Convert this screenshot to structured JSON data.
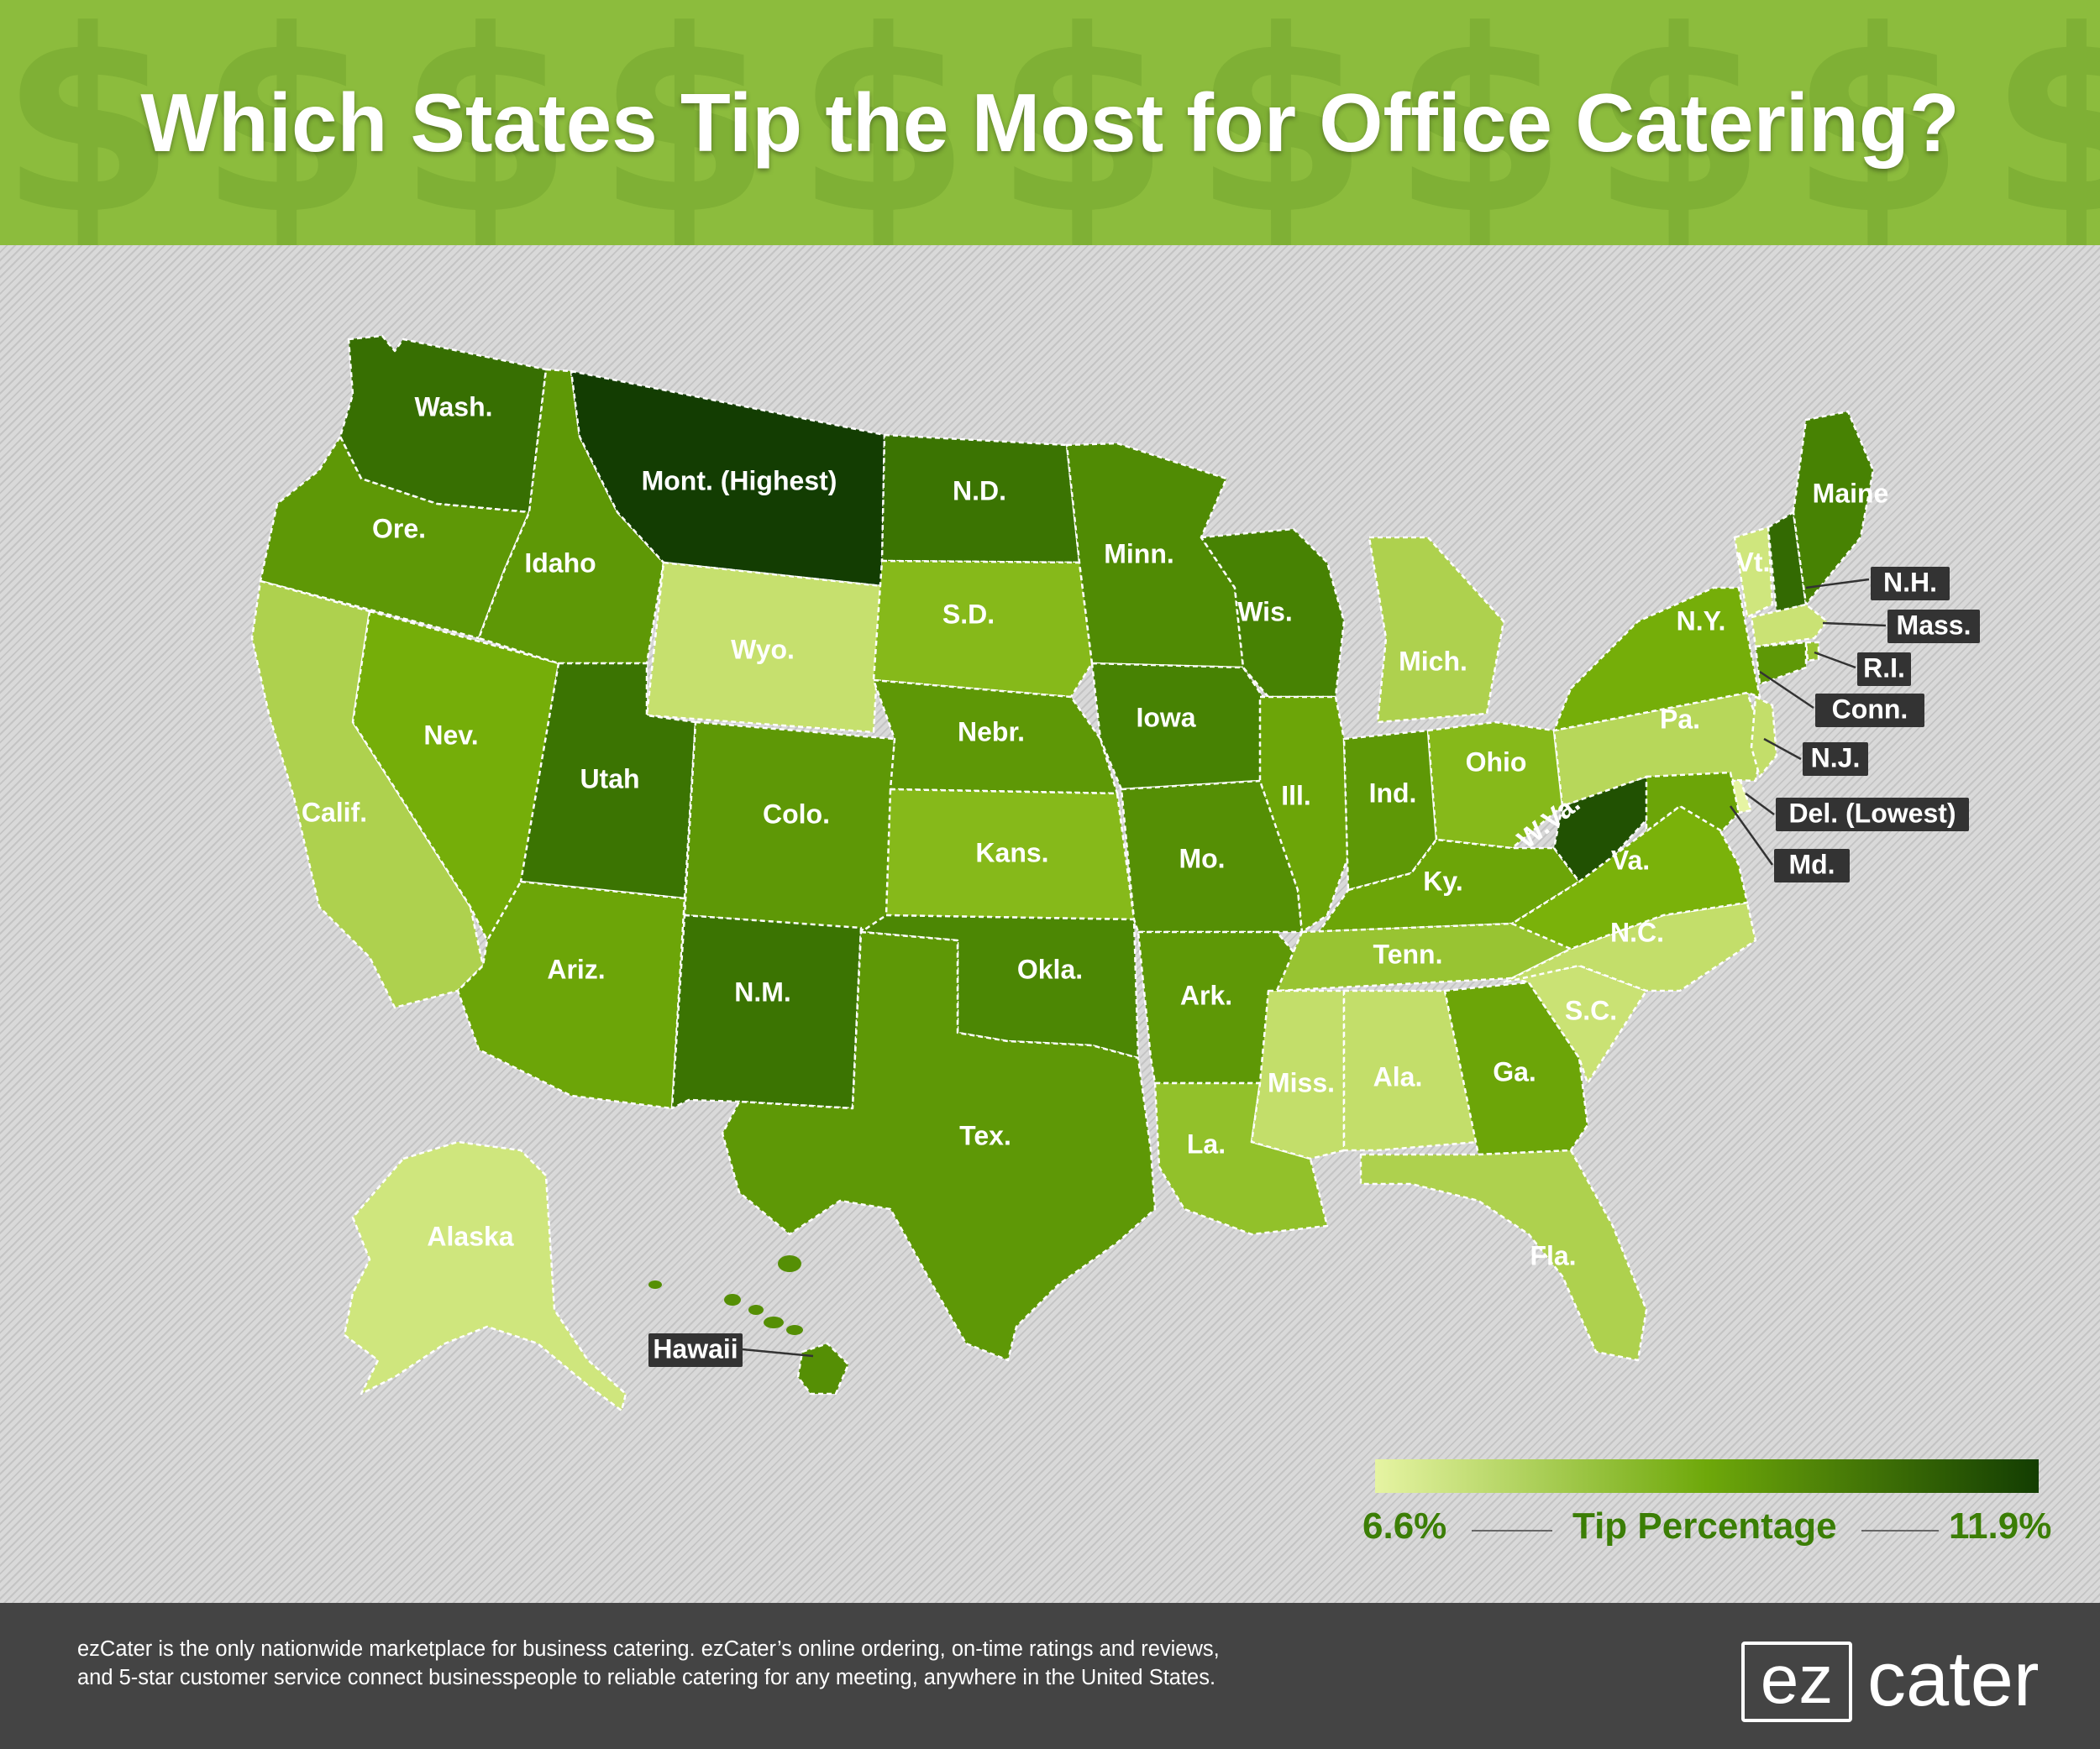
{
  "header": {
    "title": "Which States Tip the Most for Office Catering?"
  },
  "legend": {
    "min_label": "6.6%",
    "title": "Tip Percentage",
    "max_label": "11.9%",
    "min_color": "#e6f4a3",
    "max_color": "#133d02"
  },
  "states": [
    {
      "id": "WA",
      "label": "Wash.",
      "level": 0.8
    },
    {
      "id": "OR",
      "label": "Ore.",
      "level": 0.62
    },
    {
      "id": "CA",
      "label": "Calif.",
      "level": 0.33
    },
    {
      "id": "NV",
      "label": "Nev.",
      "level": 0.52
    },
    {
      "id": "ID",
      "label": "Idaho",
      "level": 0.62
    },
    {
      "id": "MT",
      "label": "Mont. (Highest)",
      "level": 1.0
    },
    {
      "id": "WY",
      "label": "Wyo.",
      "level": 0.25
    },
    {
      "id": "UT",
      "label": "Utah",
      "level": 0.78
    },
    {
      "id": "CO",
      "label": "Colo.",
      "level": 0.62
    },
    {
      "id": "AZ",
      "label": "Ariz.",
      "level": 0.56
    },
    {
      "id": "NM",
      "label": "N.M.",
      "level": 0.78
    },
    {
      "id": "ND",
      "label": "N.D.",
      "level": 0.78
    },
    {
      "id": "SD",
      "label": "S.D.",
      "level": 0.46
    },
    {
      "id": "NE",
      "label": "Nebr.",
      "level": 0.62
    },
    {
      "id": "KS",
      "label": "Kans.",
      "level": 0.46
    },
    {
      "id": "OK",
      "label": "Okla.",
      "level": 0.7
    },
    {
      "id": "TX",
      "label": "Tex.",
      "level": 0.62
    },
    {
      "id": "MN",
      "label": "Minn.",
      "level": 0.68
    },
    {
      "id": "IA",
      "label": "Iowa",
      "level": 0.72
    },
    {
      "id": "MO",
      "label": "Mo.",
      "level": 0.66
    },
    {
      "id": "AR",
      "label": "Ark.",
      "level": 0.62
    },
    {
      "id": "LA",
      "label": "La.",
      "level": 0.42
    },
    {
      "id": "WI",
      "label": "Wis.",
      "level": 0.72
    },
    {
      "id": "IL",
      "label": "Ill.",
      "level": 0.56
    },
    {
      "id": "MI",
      "label": "Mich.",
      "level": 0.33
    },
    {
      "id": "IN",
      "label": "Ind.",
      "level": 0.62
    },
    {
      "id": "OH",
      "label": "Ohio",
      "level": 0.46
    },
    {
      "id": "KY",
      "label": "Ky.",
      "level": 0.56
    },
    {
      "id": "TN",
      "label": "Tenn.",
      "level": 0.4
    },
    {
      "id": "MS",
      "label": "Miss.",
      "level": 0.26
    },
    {
      "id": "AL",
      "label": "Ala.",
      "level": 0.26
    },
    {
      "id": "GA",
      "label": "Ga.",
      "level": 0.56
    },
    {
      "id": "FL",
      "label": "Fla.",
      "level": 0.33
    },
    {
      "id": "SC",
      "label": "S.C.",
      "level": 0.22
    },
    {
      "id": "NC",
      "label": "N.C.",
      "level": 0.26
    },
    {
      "id": "VA",
      "label": "Va.",
      "level": 0.5
    },
    {
      "id": "WV",
      "label": "W.Va.",
      "level": 0.92
    },
    {
      "id": "PA",
      "label": "Pa.",
      "level": 0.3
    },
    {
      "id": "NY",
      "label": "N.Y.",
      "level": 0.52
    },
    {
      "id": "VT",
      "label": "Vt.",
      "level": 0.18
    },
    {
      "id": "NH",
      "label": "N.H.",
      "level": 0.82
    },
    {
      "id": "ME",
      "label": "Maine",
      "level": 0.72
    },
    {
      "id": "MA",
      "label": "Mass.",
      "level": 0.22
    },
    {
      "id": "RI",
      "label": "R.I.",
      "level": 0.4
    },
    {
      "id": "CT",
      "label": "Conn.",
      "level": 0.62
    },
    {
      "id": "NJ",
      "label": "N.J.",
      "level": 0.26
    },
    {
      "id": "DE",
      "label": "Del. (Lowest)",
      "level": 0.0
    },
    {
      "id": "MD",
      "label": "Md.",
      "level": 0.56
    },
    {
      "id": "AK",
      "label": "Alaska",
      "level": 0.18
    },
    {
      "id": "HI",
      "label": "Hawaii",
      "level": 0.66
    }
  ],
  "footer": {
    "blurb": "ezCater is the only nationwide marketplace for business catering. ezCater’s online ordering, on-time ratings and reviews, and 5-star customer service connect businesspeople to reliable catering for any meeting, anywhere in the United States.",
    "logo_ez": "ez",
    "logo_cater": "cater"
  }
}
